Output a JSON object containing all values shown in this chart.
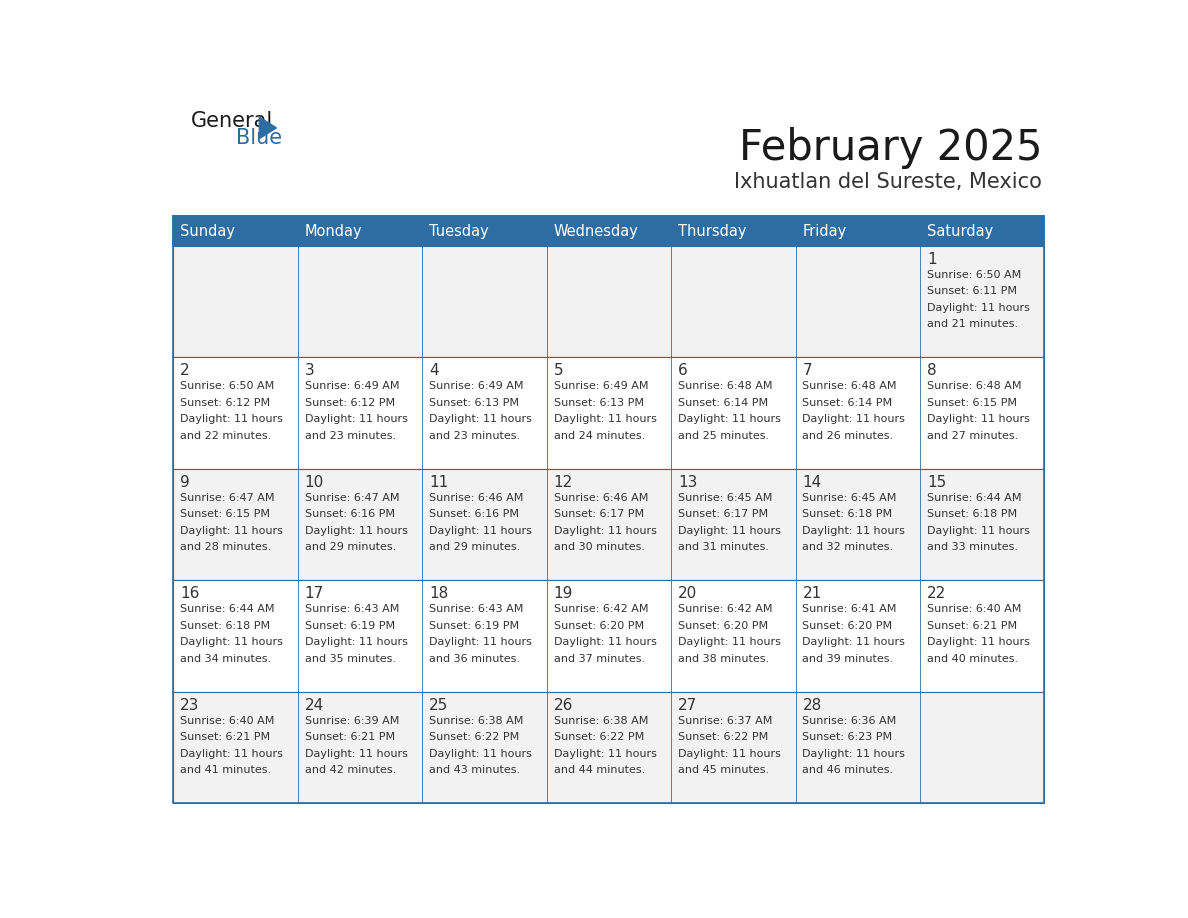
{
  "title": "February 2025",
  "subtitle": "Ixhuatlan del Sureste, Mexico",
  "header_bg_color": "#2E6DA4",
  "header_text_color": "#FFFFFF",
  "cell_bg_even": "#F2F2F2",
  "cell_bg_odd": "#FFFFFF",
  "border_color": "#2E6DA4",
  "title_color": "#1a1a1a",
  "subtitle_color": "#333333",
  "day_number_color": "#333333",
  "info_text_color": "#333333",
  "logo_general_color": "#1a1a1a",
  "logo_blue_color": "#2E6DA4",
  "day_names": [
    "Sunday",
    "Monday",
    "Tuesday",
    "Wednesday",
    "Thursday",
    "Friday",
    "Saturday"
  ],
  "weeks": [
    [
      null,
      null,
      null,
      null,
      null,
      null,
      {
        "day": 1,
        "sunrise": "6:50 AM",
        "sunset": "6:11 PM",
        "daylight_hours": 11,
        "daylight_minutes": 21
      }
    ],
    [
      {
        "day": 2,
        "sunrise": "6:50 AM",
        "sunset": "6:12 PM",
        "daylight_hours": 11,
        "daylight_minutes": 22
      },
      {
        "day": 3,
        "sunrise": "6:49 AM",
        "sunset": "6:12 PM",
        "daylight_hours": 11,
        "daylight_minutes": 23
      },
      {
        "day": 4,
        "sunrise": "6:49 AM",
        "sunset": "6:13 PM",
        "daylight_hours": 11,
        "daylight_minutes": 23
      },
      {
        "day": 5,
        "sunrise": "6:49 AM",
        "sunset": "6:13 PM",
        "daylight_hours": 11,
        "daylight_minutes": 24
      },
      {
        "day": 6,
        "sunrise": "6:48 AM",
        "sunset": "6:14 PM",
        "daylight_hours": 11,
        "daylight_minutes": 25
      },
      {
        "day": 7,
        "sunrise": "6:48 AM",
        "sunset": "6:14 PM",
        "daylight_hours": 11,
        "daylight_minutes": 26
      },
      {
        "day": 8,
        "sunrise": "6:48 AM",
        "sunset": "6:15 PM",
        "daylight_hours": 11,
        "daylight_minutes": 27
      }
    ],
    [
      {
        "day": 9,
        "sunrise": "6:47 AM",
        "sunset": "6:15 PM",
        "daylight_hours": 11,
        "daylight_minutes": 28
      },
      {
        "day": 10,
        "sunrise": "6:47 AM",
        "sunset": "6:16 PM",
        "daylight_hours": 11,
        "daylight_minutes": 29
      },
      {
        "day": 11,
        "sunrise": "6:46 AM",
        "sunset": "6:16 PM",
        "daylight_hours": 11,
        "daylight_minutes": 29
      },
      {
        "day": 12,
        "sunrise": "6:46 AM",
        "sunset": "6:17 PM",
        "daylight_hours": 11,
        "daylight_minutes": 30
      },
      {
        "day": 13,
        "sunrise": "6:45 AM",
        "sunset": "6:17 PM",
        "daylight_hours": 11,
        "daylight_minutes": 31
      },
      {
        "day": 14,
        "sunrise": "6:45 AM",
        "sunset": "6:18 PM",
        "daylight_hours": 11,
        "daylight_minutes": 32
      },
      {
        "day": 15,
        "sunrise": "6:44 AM",
        "sunset": "6:18 PM",
        "daylight_hours": 11,
        "daylight_minutes": 33
      }
    ],
    [
      {
        "day": 16,
        "sunrise": "6:44 AM",
        "sunset": "6:18 PM",
        "daylight_hours": 11,
        "daylight_minutes": 34
      },
      {
        "day": 17,
        "sunrise": "6:43 AM",
        "sunset": "6:19 PM",
        "daylight_hours": 11,
        "daylight_minutes": 35
      },
      {
        "day": 18,
        "sunrise": "6:43 AM",
        "sunset": "6:19 PM",
        "daylight_hours": 11,
        "daylight_minutes": 36
      },
      {
        "day": 19,
        "sunrise": "6:42 AM",
        "sunset": "6:20 PM",
        "daylight_hours": 11,
        "daylight_minutes": 37
      },
      {
        "day": 20,
        "sunrise": "6:42 AM",
        "sunset": "6:20 PM",
        "daylight_hours": 11,
        "daylight_minutes": 38
      },
      {
        "day": 21,
        "sunrise": "6:41 AM",
        "sunset": "6:20 PM",
        "daylight_hours": 11,
        "daylight_minutes": 39
      },
      {
        "day": 22,
        "sunrise": "6:40 AM",
        "sunset": "6:21 PM",
        "daylight_hours": 11,
        "daylight_minutes": 40
      }
    ],
    [
      {
        "day": 23,
        "sunrise": "6:40 AM",
        "sunset": "6:21 PM",
        "daylight_hours": 11,
        "daylight_minutes": 41
      },
      {
        "day": 24,
        "sunrise": "6:39 AM",
        "sunset": "6:21 PM",
        "daylight_hours": 11,
        "daylight_minutes": 42
      },
      {
        "day": 25,
        "sunrise": "6:38 AM",
        "sunset": "6:22 PM",
        "daylight_hours": 11,
        "daylight_minutes": 43
      },
      {
        "day": 26,
        "sunrise": "6:38 AM",
        "sunset": "6:22 PM",
        "daylight_hours": 11,
        "daylight_minutes": 44
      },
      {
        "day": 27,
        "sunrise": "6:37 AM",
        "sunset": "6:22 PM",
        "daylight_hours": 11,
        "daylight_minutes": 45
      },
      {
        "day": 28,
        "sunrise": "6:36 AM",
        "sunset": "6:23 PM",
        "daylight_hours": 11,
        "daylight_minutes": 46
      },
      null
    ]
  ]
}
